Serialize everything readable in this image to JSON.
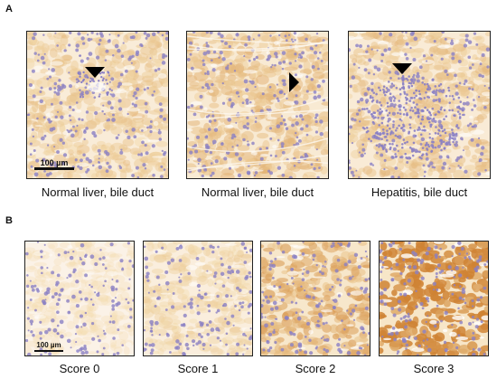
{
  "panels": {
    "a": {
      "letter": "A",
      "images": [
        {
          "caption": "Normal liver, bile duct",
          "scale_bar": "100 µm",
          "arrow": "down",
          "stain_level": 0.35,
          "lesion": "portal"
        },
        {
          "caption": "Normal liver, bile duct",
          "arrow": "right",
          "stain_level": 0.45,
          "lesion": "cords"
        },
        {
          "caption": "Hepatitis, bile duct",
          "arrow": "down",
          "stain_level": 0.4,
          "lesion": "inflammation"
        }
      ]
    },
    "b": {
      "letter": "B",
      "images": [
        {
          "caption": "Score 0",
          "scale_bar": "100 µm",
          "stain_level": 0.05
        },
        {
          "caption": "Score 1",
          "stain_level": 0.25
        },
        {
          "caption": "Score 2",
          "stain_level": 0.6
        },
        {
          "caption": "Score 3",
          "stain_level": 1.0
        }
      ]
    }
  },
  "colors": {
    "hematoxylin": "#8a7fc4",
    "dab_light": "#f3dcae",
    "dab_dark": "#c9731e",
    "background_tissue": "#f7e6c8"
  }
}
